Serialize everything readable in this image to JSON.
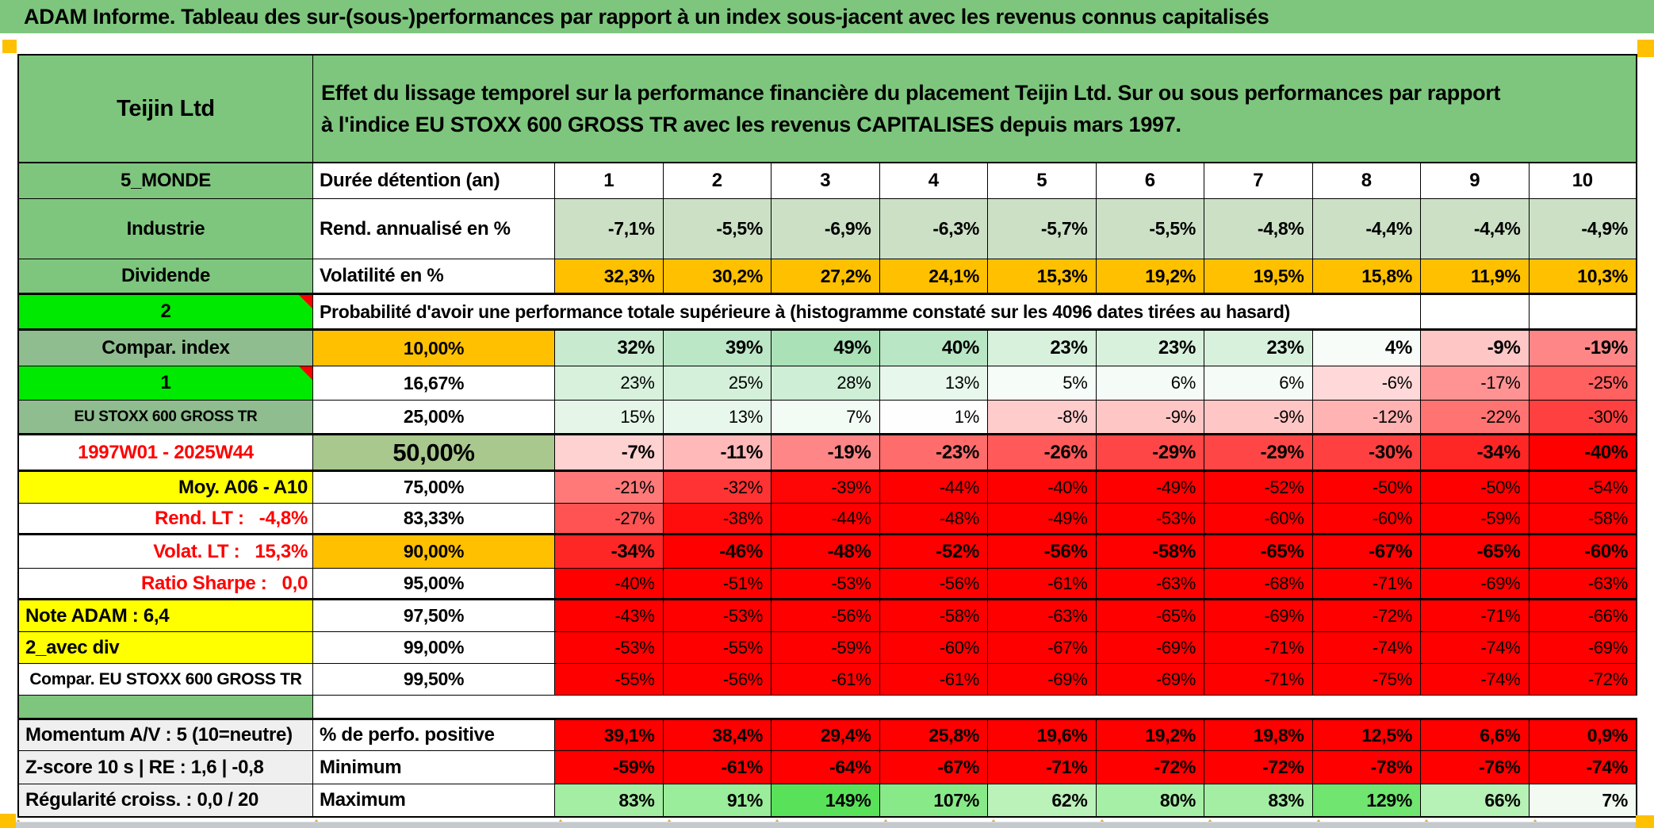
{
  "title": "ADAM Informe. Tableau des sur-(sous-)performances par rapport à un index sous-jacent avec les revenus connus capitalisés",
  "header": {
    "company": "Teijin Ltd",
    "description": "Effet du lissage temporel sur la performance financière du placement Teijin Ltd. Sur ou sous performances par rapport à l'indice EU STOXX 600 GROSS TR avec les revenus CAPITALISES depuis mars 1997."
  },
  "palette": {
    "header_green": "#7EC67E",
    "sage_green": "#8FBD8F",
    "bright_green": "#00E900",
    "olive_green": "#A8C88E",
    "orange": "#FFC000",
    "yellow": "#FFFF00",
    "red": "#FF0000",
    "return_row_bg": "#CCE0C6",
    "gray_label_bg": "#EFEFEF"
  },
  "duration_row": {
    "label": "5_MONDE",
    "metric": "Durée détention (an)",
    "values": [
      "1",
      "2",
      "3",
      "4",
      "5",
      "6",
      "7",
      "8",
      "9",
      "10"
    ]
  },
  "return_row": {
    "label": "Industrie",
    "metric": "Rend. annualisé en %",
    "bg": "#CCE0C6",
    "values": [
      "-7,1%",
      "-5,5%",
      "-6,9%",
      "-6,3%",
      "-5,7%",
      "-5,5%",
      "-4,8%",
      "-4,4%",
      "-4,4%",
      "-4,9%"
    ]
  },
  "volatility_row": {
    "label": "Dividende",
    "metric": "Volatilité en %",
    "bg": "#FFC000",
    "values": [
      "32,3%",
      "30,2%",
      "27,2%",
      "24,1%",
      "15,3%",
      "19,2%",
      "19,5%",
      "15,8%",
      "11,9%",
      "10,3%"
    ]
  },
  "probability_row": {
    "label": "2",
    "note": "Probabilité d'avoir une performance totale supérieure à (histogramme constaté sur les 4096 dates tirées au hasard)"
  },
  "quantile_rows": [
    {
      "label": "Compar. index",
      "label_bg": "sage",
      "pct": "10,00%",
      "pct_bg": "orange",
      "bold": true,
      "values": [
        "32%",
        "39%",
        "49%",
        "40%",
        "23%",
        "23%",
        "23%",
        "4%",
        "-9%",
        "-19%"
      ],
      "colors": [
        "#C8EBD0",
        "#BBE7C6",
        "#AAE1B7",
        "#B9E6C4",
        "#D7F1DD",
        "#D7F1DD",
        "#D7F1DD",
        "#F8FCF9",
        "#FFC6C6",
        "#FF8686"
      ]
    },
    {
      "label": "1",
      "label_bg": "bright",
      "corner": true,
      "pct": "16,67%",
      "values": [
        "23%",
        "25%",
        "28%",
        "13%",
        "5%",
        "6%",
        "6%",
        "-6%",
        "-17%",
        "-25%"
      ],
      "colors": [
        "#D7F1DD",
        "#D4F0DA",
        "#CEEED6",
        "#E8F7EC",
        "#F6FCF8",
        "#F5FBF6",
        "#F5FBF6",
        "#FFD9D9",
        "#FF9393",
        "#FF6060"
      ]
    },
    {
      "label": "EU STOXX 600 GROSS TR",
      "label_bg": "sage",
      "label_small": 1,
      "pct": "25,00%",
      "values": [
        "15%",
        "13%",
        "7%",
        "1%",
        "-8%",
        "-9%",
        "-9%",
        "-12%",
        "-22%",
        "-30%"
      ],
      "colors": [
        "#E5F6E9",
        "#E8F7EC",
        "#F3FBF5",
        "#FDFEFD",
        "#FFCCCC",
        "#FFC6C6",
        "#FFC6C6",
        "#FFB3B3",
        "#FF7373",
        "#FF4040"
      ]
    },
    {
      "label": "1997W01 - 2025W44",
      "label_color": "#FF0000",
      "pct": "50,00%",
      "pct_bg": "olive",
      "bold": true,
      "big": true,
      "values": [
        "-7%",
        "-11%",
        "-19%",
        "-23%",
        "-26%",
        "-29%",
        "-29%",
        "-30%",
        "-34%",
        "-40%"
      ],
      "colors": [
        "#FFD2D2",
        "#FFB9B9",
        "#FF8686",
        "#FF6C6C",
        "#FF5959",
        "#FF4646",
        "#FF4646",
        "#FF4040",
        "#FF2626",
        "#FF0000"
      ]
    },
    {
      "label": "Moy. A06 - A10",
      "label_bg": "yellow",
      "label_align": "right",
      "pct": "75,00%",
      "values": [
        "-21%",
        "-32%",
        "-39%",
        "-44%",
        "-40%",
        "-49%",
        "-52%",
        "-50%",
        "-50%",
        "-54%"
      ],
      "colors": [
        "#FF7979",
        "#FF3333",
        "#FF0606",
        "#FF0000",
        "#FF0000",
        "#FF0000",
        "#FF0000",
        "#FF0000",
        "#FF0000",
        "#FF0000"
      ]
    },
    {
      "label": "Rend. LT :   -4,8%",
      "label_color": "#FF0000",
      "label_align": "right",
      "pct": "83,33%",
      "values": [
        "-27%",
        "-38%",
        "-44%",
        "-48%",
        "-49%",
        "-53%",
        "-60%",
        "-60%",
        "-59%",
        "-58%"
      ],
      "colors": [
        "#FF5353",
        "#FF0D0D",
        "#FF0000",
        "#FF0000",
        "#FF0000",
        "#FF0000",
        "#FF0000",
        "#FF0000",
        "#FF0000",
        "#FF0000"
      ]
    },
    {
      "label": "Volat. LT :   15,3%",
      "label_color": "#FF0000",
      "label_align": "right",
      "pct": "90,00%",
      "pct_bg": "orange",
      "bold": true,
      "values": [
        "-34%",
        "-46%",
        "-48%",
        "-52%",
        "-56%",
        "-58%",
        "-65%",
        "-67%",
        "-65%",
        "-60%"
      ],
      "colors": [
        "#FF2626",
        "#FF0000",
        "#FF0000",
        "#FF0000",
        "#FF0000",
        "#FF0000",
        "#FF0000",
        "#FF0000",
        "#FF0000",
        "#FF0000"
      ]
    },
    {
      "label": "Ratio Sharpe :   0,0",
      "label_color": "#FF0000",
      "label_align": "right",
      "pct": "95,00%",
      "values": [
        "-40%",
        "-51%",
        "-53%",
        "-56%",
        "-61%",
        "-63%",
        "-68%",
        "-71%",
        "-69%",
        "-63%"
      ],
      "colors": [
        "#FF0000",
        "#FF0000",
        "#FF0000",
        "#FF0000",
        "#FF0000",
        "#FF0000",
        "#FF0000",
        "#FF0000",
        "#FF0000",
        "#FF0000"
      ]
    },
    {
      "label": "Note ADAM : 6,4",
      "label_bg": "yellow",
      "label_align": "left",
      "pct": "97,50%",
      "values": [
        "-43%",
        "-53%",
        "-56%",
        "-58%",
        "-63%",
        "-65%",
        "-69%",
        "-72%",
        "-71%",
        "-66%"
      ],
      "colors": [
        "#FF0000",
        "#FF0000",
        "#FF0000",
        "#FF0000",
        "#FF0000",
        "#FF0000",
        "#FF0000",
        "#FF0000",
        "#FF0000",
        "#FF0000"
      ]
    },
    {
      "label": "2_avec div",
      "label_bg": "yellow",
      "label_align": "left",
      "pct": "99,00%",
      "values": [
        "-53%",
        "-55%",
        "-59%",
        "-60%",
        "-67%",
        "-69%",
        "-71%",
        "-74%",
        "-74%",
        "-69%"
      ],
      "colors": [
        "#FF0000",
        "#FF0000",
        "#FF0000",
        "#FF0000",
        "#FF0000",
        "#FF0000",
        "#FF0000",
        "#FF0000",
        "#FF0000",
        "#FF0000"
      ]
    },
    {
      "label": "Compar. EU STOXX 600 GROSS TR",
      "label_small": 2,
      "pct": "99,50%",
      "values": [
        "-55%",
        "-56%",
        "-61%",
        "-61%",
        "-69%",
        "-69%",
        "-71%",
        "-75%",
        "-74%",
        "-72%"
      ],
      "colors": [
        "#FF0000",
        "#FF0000",
        "#FF0000",
        "#FF0000",
        "#FF0000",
        "#FF0000",
        "#FF0000",
        "#FF0000",
        "#FF0000",
        "#FF0000"
      ]
    }
  ],
  "bottom_rows": [
    {
      "label": "Momentum A/V : 5 (10=neutre)",
      "metric": "% de perfo. positive",
      "values": [
        "39,1%",
        "38,4%",
        "29,4%",
        "25,8%",
        "19,6%",
        "19,2%",
        "19,8%",
        "12,5%",
        "6,6%",
        "0,9%"
      ],
      "colors": [
        "#FF0000",
        "#FF0000",
        "#FF0000",
        "#FF0000",
        "#FF0000",
        "#FF0000",
        "#FF0000",
        "#FF0000",
        "#FF0000",
        "#FF0000"
      ]
    },
    {
      "label": "Z-score 10 s | RE : 1,6 | -0,8",
      "metric": "Minimum",
      "values": [
        "-59%",
        "-61%",
        "-64%",
        "-67%",
        "-71%",
        "-72%",
        "-72%",
        "-78%",
        "-76%",
        "-74%"
      ],
      "colors": [
        "#FF0000",
        "#FF0000",
        "#FF0000",
        "#FF0000",
        "#FF0000",
        "#FF0000",
        "#FF0000",
        "#FF0000",
        "#FF0000",
        "#FF0000"
      ]
    },
    {
      "label": "Régularité croiss. : 0,0 / 20",
      "metric": "Maximum",
      "values": [
        "83%",
        "91%",
        "149%",
        "107%",
        "62%",
        "80%",
        "83%",
        "129%",
        "66%",
        "7%"
      ],
      "colors": [
        "#A3EEA3",
        "#9AED9A",
        "#5AE15A",
        "#88E988",
        "#BAF2BA",
        "#A6EFA6",
        "#A3EEA3",
        "#70E570",
        "#B6F1B6",
        "#F2FAF2"
      ]
    }
  ]
}
